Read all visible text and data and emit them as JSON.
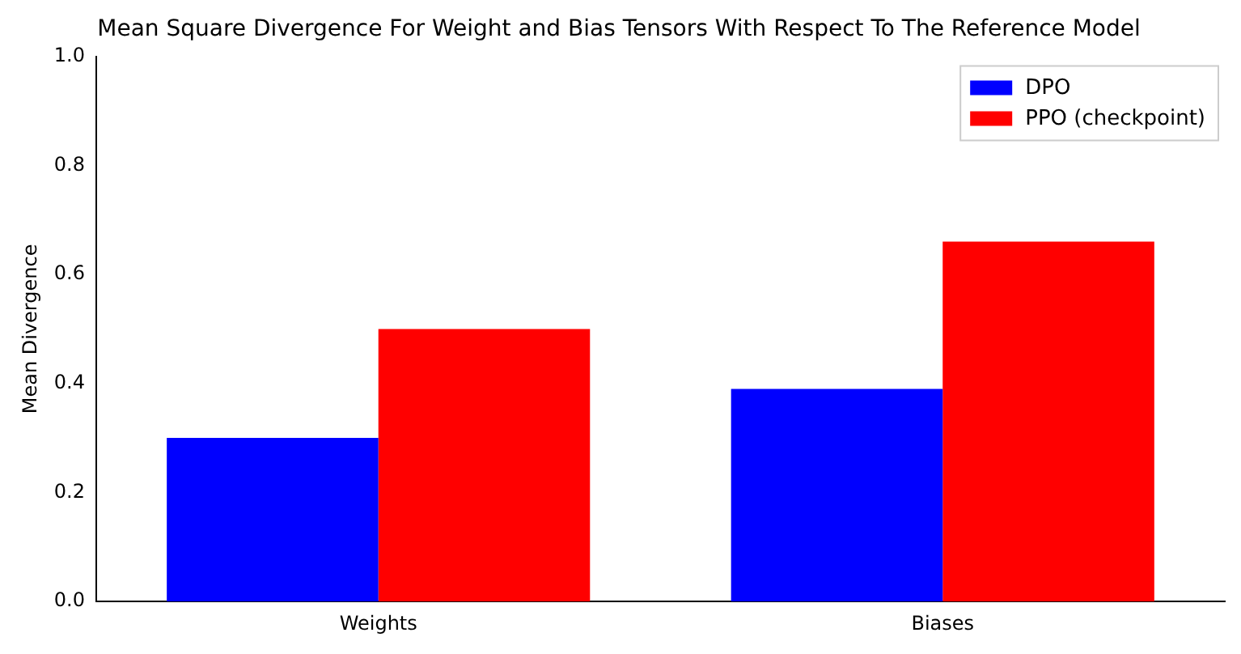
{
  "chart_data": {
    "type": "bar",
    "title": "Mean Square Divergence For Weight and Bias Tensors With Respect To The Reference Model",
    "ylabel": "Mean Divergence",
    "categories": [
      "Weights",
      "Biases"
    ],
    "series": [
      {
        "name": "DPO",
        "color": "#0000ff",
        "values": [
          0.3,
          0.39
        ]
      },
      {
        "name": "PPO (checkpoint)",
        "color": "#ff0000",
        "values": [
          0.5,
          0.66
        ]
      }
    ],
    "ylim": [
      0,
      1
    ],
    "yticks": [
      {
        "value": 0,
        "label": "0.0"
      },
      {
        "value": 0.2,
        "label": "0.2"
      },
      {
        "value": 0.4,
        "label": "0.4"
      },
      {
        "value": 0.6,
        "label": "0.6"
      },
      {
        "value": 0.8,
        "label": "0.8"
      },
      {
        "value": 1,
        "label": "1.0"
      }
    ],
    "grid": false,
    "legend": "top right"
  }
}
